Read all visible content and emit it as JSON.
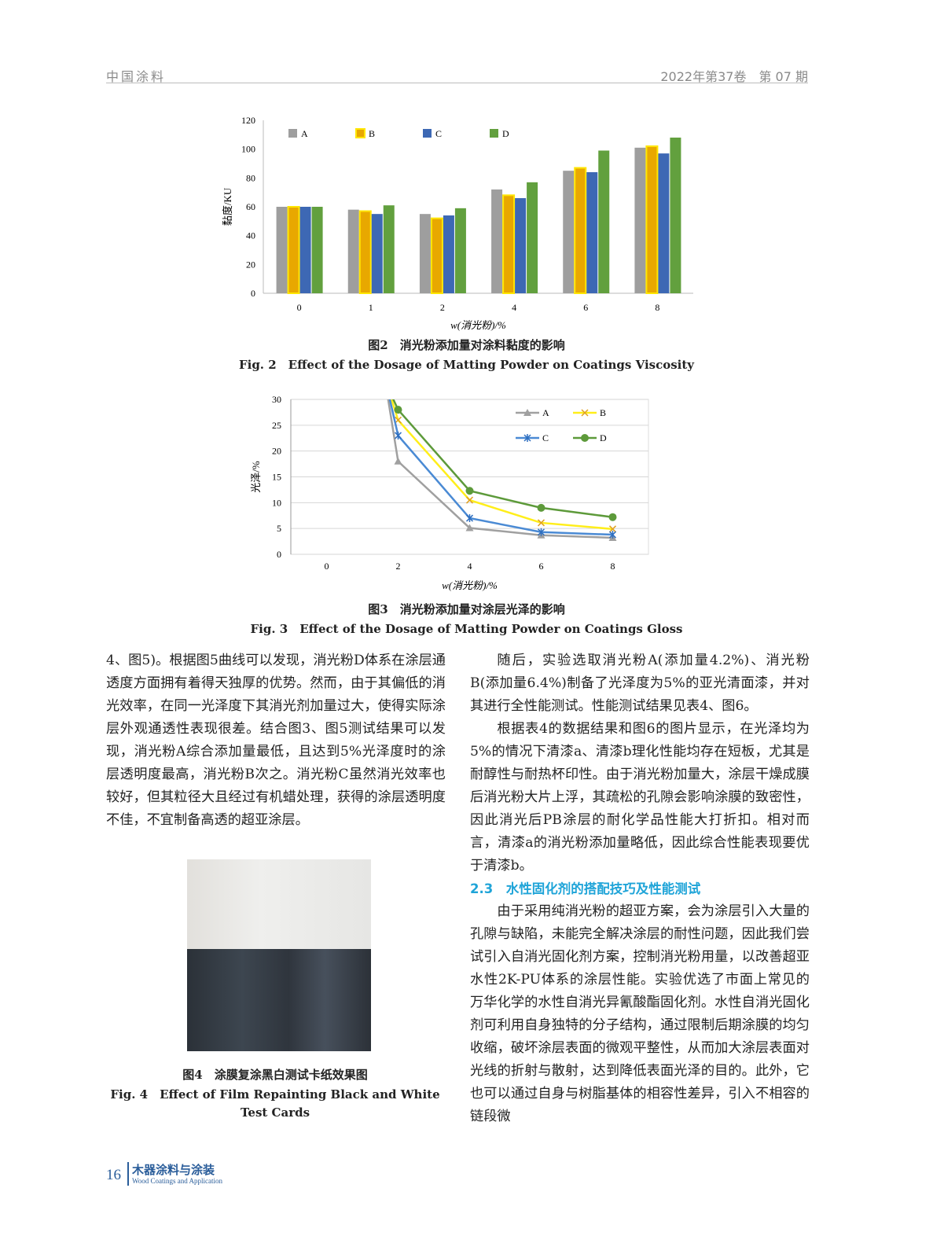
{
  "header": {
    "left": "中国涂料",
    "right": "2022年第37卷　第 07 期"
  },
  "chart_data": [
    {
      "type": "bar",
      "categories": [
        "0",
        "1",
        "2",
        "4",
        "6",
        "8"
      ],
      "series": [
        {
          "name": "A",
          "color": "#9e9e9e",
          "values": [
            60,
            58,
            55,
            72,
            85,
            101
          ]
        },
        {
          "name": "B",
          "color": "#e8a800",
          "values": [
            60,
            57,
            52,
            68,
            87,
            102
          ]
        },
        {
          "name": "C",
          "color": "#3d68b4",
          "values": [
            60,
            55,
            54,
            66,
            84,
            97
          ]
        },
        {
          "name": "D",
          "color": "#62a03e",
          "values": [
            60,
            61,
            59,
            77,
            99,
            108
          ]
        }
      ],
      "xlabel": "w(消光粉)/%",
      "ylabel": "黏度/KU",
      "ylim": [
        0,
        120
      ],
      "yticks": [
        "0",
        "20",
        "40",
        "60",
        "80",
        "100",
        "120"
      ],
      "grid": false,
      "legend": "top"
    },
    {
      "type": "line",
      "categories": [
        "0",
        "2",
        "4",
        "6",
        "8"
      ],
      "series": [
        {
          "name": "A",
          "color": "#a0a0a0",
          "marker": "triangle",
          "values": [
            null,
            18,
            5.1,
            3.7,
            3.2
          ]
        },
        {
          "name": "B",
          "color": "#ffee1a",
          "marker": "x",
          "values": [
            null,
            26,
            10.5,
            6.1,
            4.9
          ]
        },
        {
          "name": "C",
          "color": "#4a8ad4",
          "marker": "asterisk",
          "values": [
            null,
            23,
            7,
            4.3,
            3.8
          ]
        },
        {
          "name": "D",
          "color": "#5d9a3a",
          "marker": "circle",
          "values": [
            null,
            28,
            12.3,
            9,
            7.2
          ]
        }
      ],
      "xlabel": "w(消光粉)/%",
      "ylabel": "光泽/%",
      "ylim": [
        0,
        30
      ],
      "yticks": [
        "0",
        "5",
        "10",
        "15",
        "20",
        "25",
        "30"
      ],
      "grid": true,
      "legend": "top-right"
    }
  ],
  "fig2": {
    "cn": "图2　消光粉添加量对涂料黏度的影响",
    "en": "Fig. 2　Effect of the Dosage of Matting Powder on Coatings Viscosity"
  },
  "fig3": {
    "cn": "图3　消光粉添加量对涂层光泽的影响",
    "en": "Fig. 3　Effect of the Dosage of Matting Powder on Coatings Gloss"
  },
  "fig4": {
    "cn": "图4　涂膜复涂黑白测试卡纸效果图",
    "en": "Fig. 4　Effect of Film Repainting Black and White Test Cards"
  },
  "left_col": {
    "p1": "4、图5)。根据图5曲线可以发现，消光粉D体系在涂层通透度方面拥有着得天独厚的优势。然而，由于其偏低的消光效率，在同一光泽度下其消光剂加量过大，使得实际涂层外观通透性表现很差。结合图3、图5测试结果可以发现，消光粉A综合添加量最低，且达到5%光泽度时的涂层透明度最高，消光粉B次之。消光粉C虽然消光效率也较好，但其粒径大且经过有机蜡处理，获得的涂层透明度不佳，不宜制备高透的超亚涂层。"
  },
  "right_col": {
    "p1": "随后，实验选取消光粉A(添加量4.2%)、消光粉B(添加量6.4%)制备了光泽度为5%的亚光清面漆，并对其进行全性能测试。性能测试结果见表4、图6。",
    "p2": "根据表4的数据结果和图6的图片显示，在光泽均为5%的情况下清漆a、清漆b理化性能均存在短板，尤其是耐醇性与耐热杯印性。由于消光粉加量大，涂层干燥成膜后消光粉大片上浮，其疏松的孔隙会影响涂膜的致密性，因此消光后PB涂层的耐化学品性能大打折扣。相对而言，清漆a的消光粉添加量略低，因此综合性能表现要优于清漆b。",
    "heading": "2.3　水性固化剂的搭配技巧及性能测试",
    "p3": "由于采用纯消光粉的超亚方案，会为涂层引入大量的孔隙与缺陷，未能完全解决涂层的耐性问题，因此我们尝试引入自消光固化剂方案，控制消光粉用量，以改善超亚水性2K-PU体系的涂层性能。实验优选了市面上常见的万华化学的水性自消光异氰酸酯固化剂。水性自消光固化剂可利用自身独特的分子结构，通过限制后期涂膜的均匀收缩，破坏涂层表面的微观平整性，从而加大涂层表面对光线的折射与散射，达到降低表面光泽的目的。此外，它也可以通过自身与树脂基体的相容性差异，引入不相容的链段微"
  },
  "footer": {
    "page": "16",
    "journal_cn": "木器涂料与涂装",
    "journal_en": "Wood Coatings and Application"
  }
}
